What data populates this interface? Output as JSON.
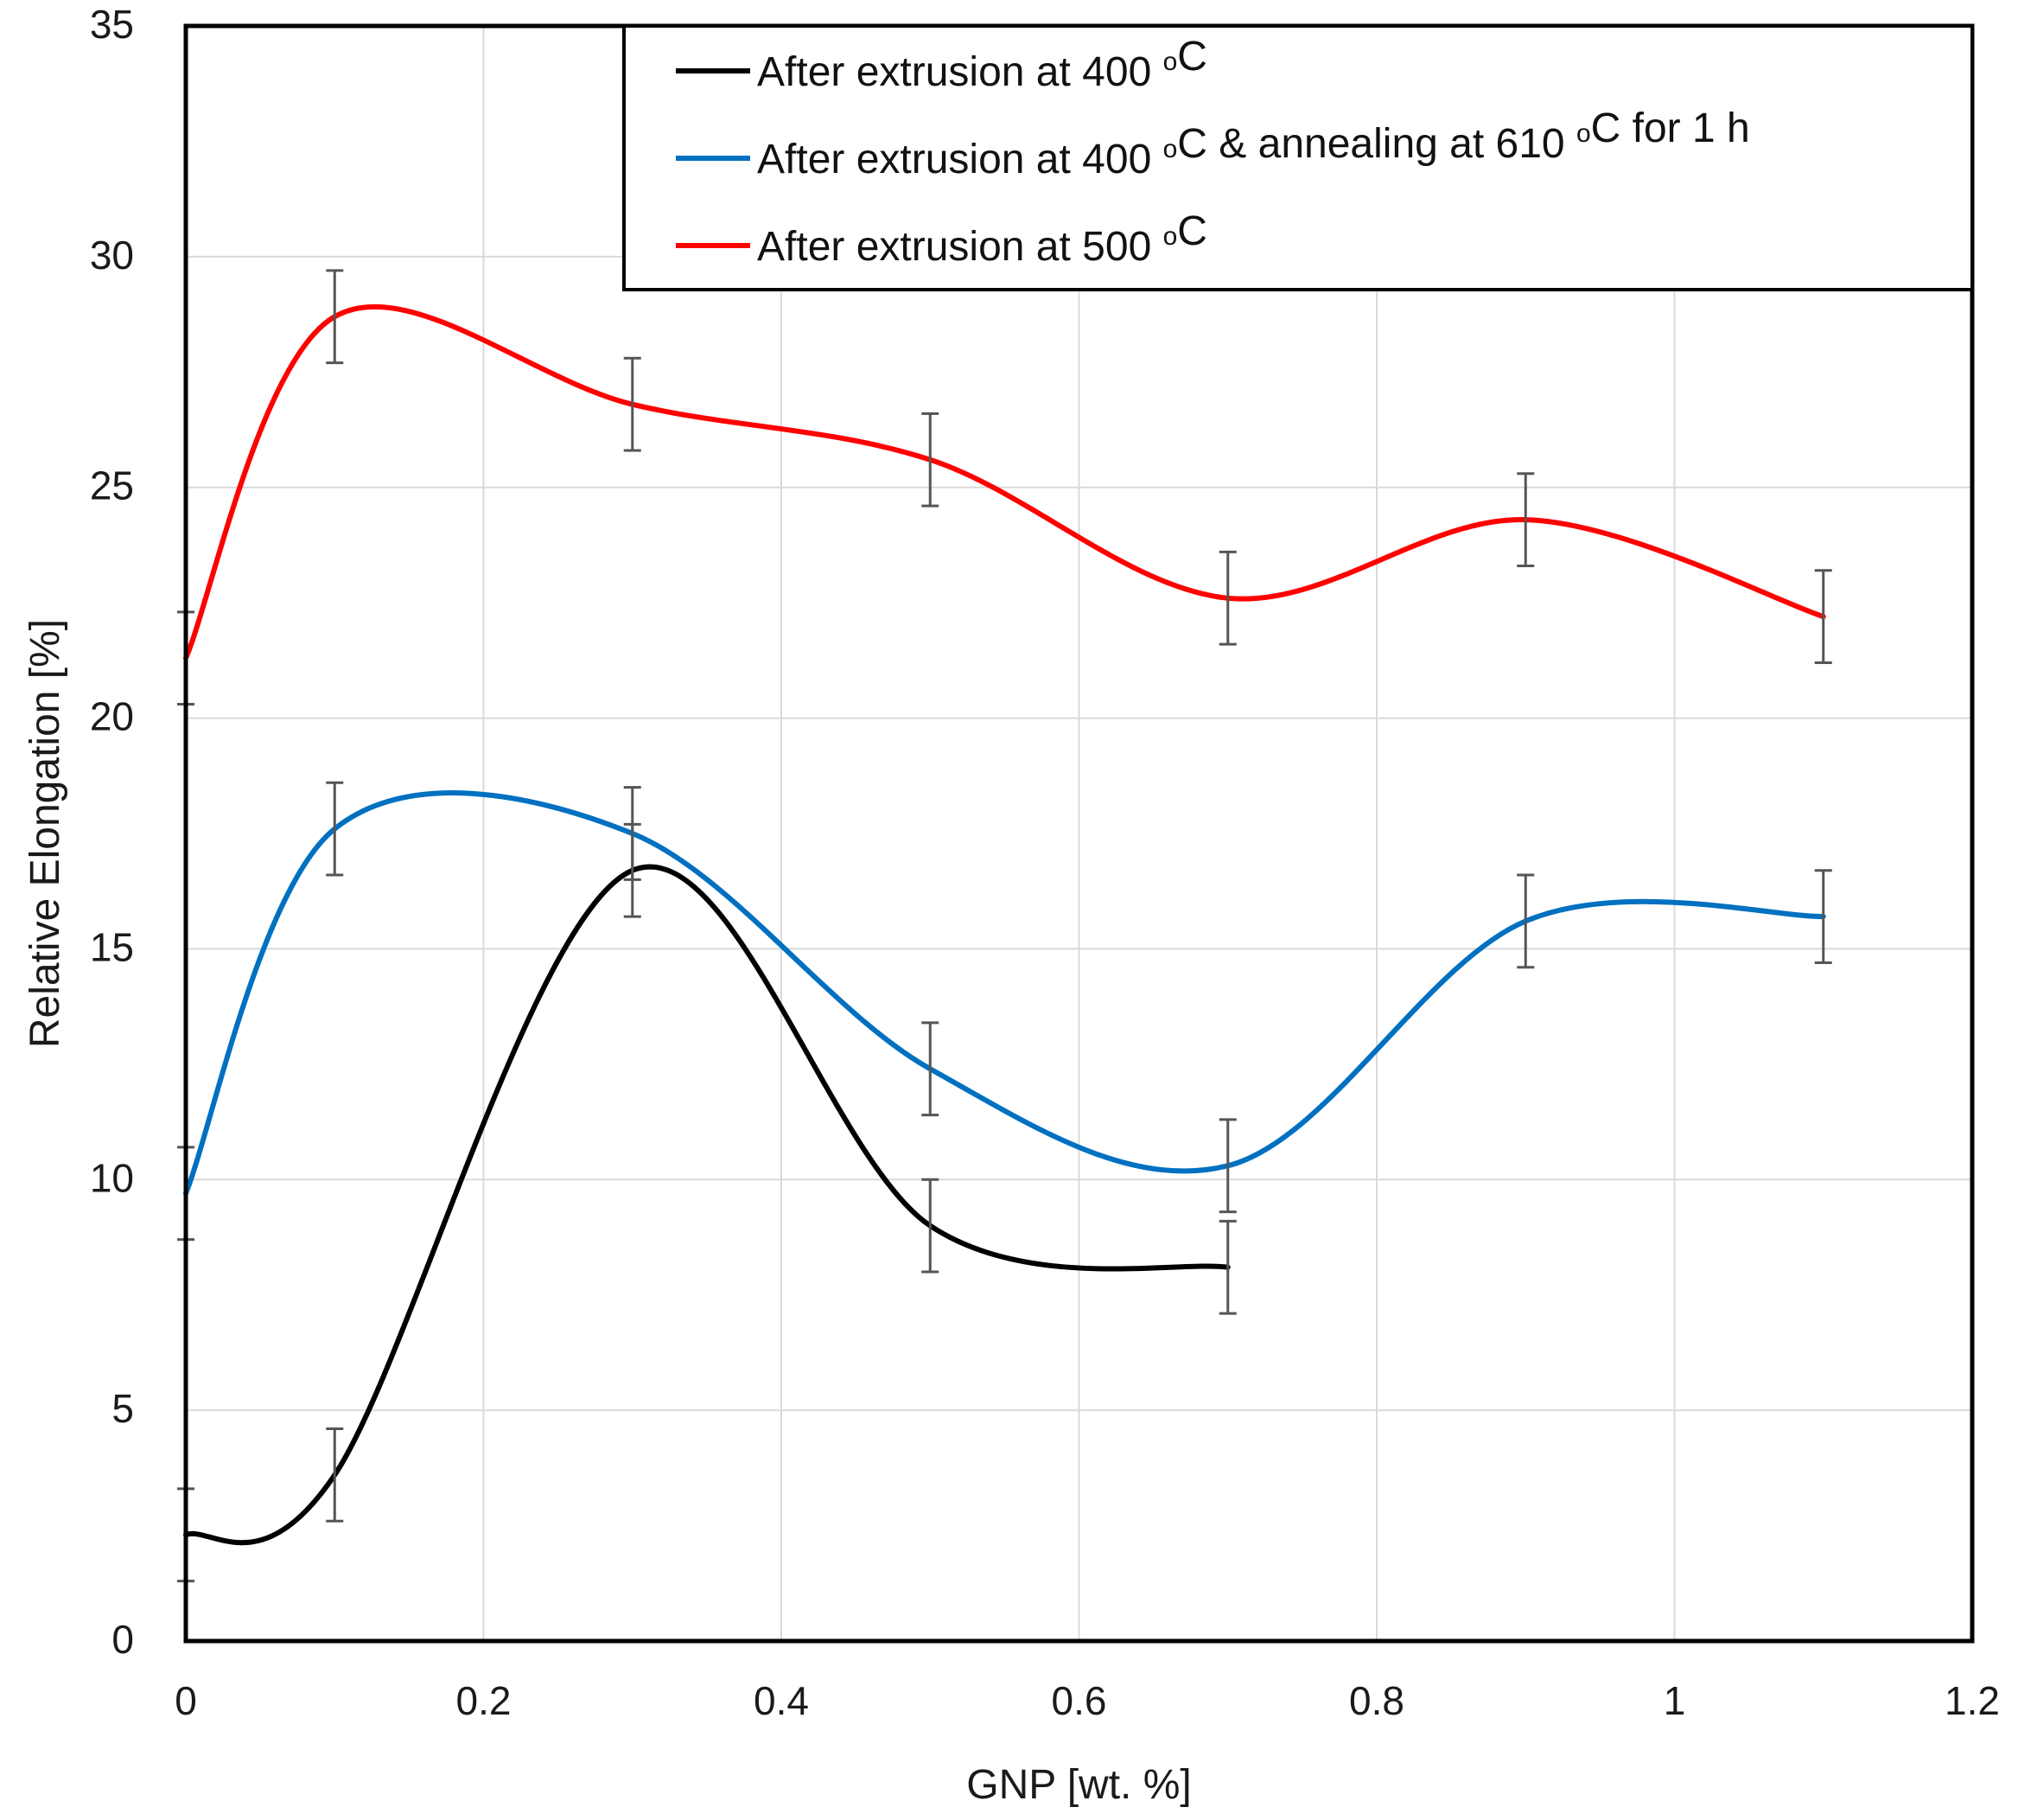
{
  "chart_data": {
    "type": "line",
    "title": "",
    "xlabel": "GNP [wt. %]",
    "ylabel": "Relative Elongation [%]",
    "xlim": [
      0,
      1.2
    ],
    "ylim": [
      0,
      35
    ],
    "xticks": [
      0,
      0.2,
      0.4,
      0.6,
      0.8,
      1,
      1.2
    ],
    "xtick_labels": [
      "0",
      "0.2",
      "0.4",
      "0.6",
      "0.8",
      "1",
      "1.2"
    ],
    "yticks": [
      0,
      5,
      10,
      15,
      20,
      25,
      30,
      35
    ],
    "ytick_labels": [
      "0",
      "5",
      "10",
      "15",
      "20",
      "25",
      "30",
      "35"
    ],
    "grid": true,
    "legend_position": "top-right",
    "series": [
      {
        "name": "After extrusion at 400 °C",
        "legend_parts": [
          "After extrusion at 400 ",
          "o",
          "C"
        ],
        "color": "#000000",
        "x": [
          0,
          0.1,
          0.3,
          0.5,
          0.7
        ],
        "values": [
          2.3,
          3.6,
          16.7,
          9.0,
          8.1
        ],
        "error": [
          1.0,
          1.0,
          1.0,
          1.0,
          1.0
        ]
      },
      {
        "name": "After extrusion at 400 °C & annealing at 610 °C for 1 h",
        "legend_parts": [
          "After extrusion at 400 ",
          "o",
          "C & annealing at 610 ",
          "o",
          "C for 1 h"
        ],
        "color": "#0070C0",
        "x": [
          0,
          0.1,
          0.3,
          0.5,
          0.7,
          0.9,
          1.1
        ],
        "values": [
          9.7,
          17.6,
          17.5,
          12.4,
          10.3,
          15.6,
          15.7
        ],
        "error": [
          1.0,
          1.0,
          1.0,
          1.0,
          1.0,
          1.0,
          1.0
        ]
      },
      {
        "name": "After extrusion at 500 °C",
        "legend_parts": [
          "After extrusion at 500 ",
          "o",
          "C"
        ],
        "color": "#FF0000",
        "x": [
          0,
          0.1,
          0.3,
          0.5,
          0.7,
          0.9,
          1.1
        ],
        "values": [
          21.3,
          28.7,
          26.8,
          25.6,
          22.6,
          24.3,
          22.2
        ],
        "error": [
          1.0,
          1.0,
          1.0,
          1.0,
          1.0,
          1.0,
          1.0
        ]
      }
    ]
  }
}
